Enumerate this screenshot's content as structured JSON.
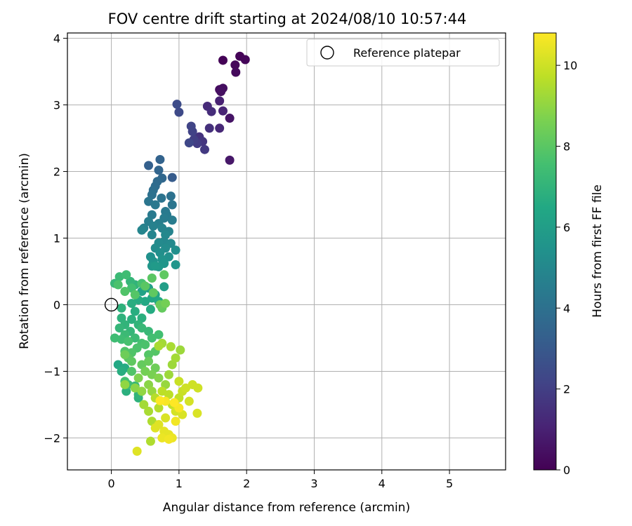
{
  "chart_data": {
    "type": "scatter",
    "title": "FOV centre drift starting at 2024/08/10 10:57:44",
    "xlabel": "Angular distance from reference (arcmin)",
    "ylabel": "Rotation from reference (arcmin)",
    "xlim": [
      -0.65,
      5.83
    ],
    "ylim": [
      -2.48,
      4.08
    ],
    "xticks": [
      0,
      1,
      2,
      3,
      4,
      5
    ],
    "yticks": [
      -2,
      -1,
      0,
      1,
      2,
      3,
      4
    ],
    "grid": true,
    "legend": {
      "placement": "top-right",
      "entries": [
        "Reference platepar"
      ]
    },
    "reference_point": {
      "x": 0,
      "y": 0,
      "label": "Reference platepar"
    },
    "colorbar": {
      "label": "Hours from first FF file",
      "colormap": "viridis",
      "range": [
        0,
        10.8
      ],
      "ticks": [
        0,
        2,
        4,
        6,
        8,
        10
      ]
    },
    "series": [
      {
        "points": [
          {
            "x": 1.65,
            "y": 3.67,
            "t": 0.05
          },
          {
            "x": 1.9,
            "y": 3.73,
            "t": 0.1
          },
          {
            "x": 1.98,
            "y": 3.68,
            "t": 0.15
          },
          {
            "x": 1.83,
            "y": 3.6,
            "t": 0.2
          },
          {
            "x": 1.84,
            "y": 3.49,
            "t": 0.25
          },
          {
            "x": 1.6,
            "y": 3.23,
            "t": 0.35
          },
          {
            "x": 1.65,
            "y": 3.25,
            "t": 0.4
          },
          {
            "x": 1.62,
            "y": 3.2,
            "t": 0.45
          },
          {
            "x": 1.75,
            "y": 2.8,
            "t": 0.6
          },
          {
            "x": 1.75,
            "y": 2.17,
            "t": 0.7
          },
          {
            "x": 1.6,
            "y": 3.06,
            "t": 1.0
          },
          {
            "x": 1.65,
            "y": 2.91,
            "t": 1.1
          },
          {
            "x": 1.6,
            "y": 2.65,
            "t": 1.2
          },
          {
            "x": 1.42,
            "y": 2.98,
            "t": 1.3
          },
          {
            "x": 1.48,
            "y": 2.9,
            "t": 1.4
          },
          {
            "x": 1.45,
            "y": 2.65,
            "t": 1.5
          },
          {
            "x": 1.3,
            "y": 2.52,
            "t": 1.6
          },
          {
            "x": 1.35,
            "y": 2.45,
            "t": 1.7
          },
          {
            "x": 1.38,
            "y": 2.33,
            "t": 1.8
          },
          {
            "x": 1.27,
            "y": 2.42,
            "t": 1.9
          },
          {
            "x": 1.22,
            "y": 2.48,
            "t": 2.0
          },
          {
            "x": 1.2,
            "y": 2.6,
            "t": 2.1
          },
          {
            "x": 1.18,
            "y": 2.68,
            "t": 2.2
          },
          {
            "x": 1.15,
            "y": 2.43,
            "t": 2.3
          },
          {
            "x": 1.0,
            "y": 2.89,
            "t": 2.4
          },
          {
            "x": 0.97,
            "y": 3.01,
            "t": 2.5
          },
          {
            "x": 0.9,
            "y": 1.91,
            "t": 3.1
          },
          {
            "x": 0.55,
            "y": 2.09,
            "t": 3.3
          },
          {
            "x": 0.72,
            "y": 2.18,
            "t": 3.4
          },
          {
            "x": 0.7,
            "y": 2.02,
            "t": 3.5
          },
          {
            "x": 0.75,
            "y": 1.9,
            "t": 3.6
          },
          {
            "x": 0.68,
            "y": 1.85,
            "t": 3.7
          },
          {
            "x": 0.65,
            "y": 1.78,
            "t": 3.8
          },
          {
            "x": 0.62,
            "y": 1.72,
            "t": 3.9
          },
          {
            "x": 0.6,
            "y": 1.65,
            "t": 4.0
          },
          {
            "x": 0.88,
            "y": 1.63,
            "t": 4.0
          },
          {
            "x": 0.74,
            "y": 1.6,
            "t": 4.1
          },
          {
            "x": 0.55,
            "y": 1.55,
            "t": 4.2
          },
          {
            "x": 0.9,
            "y": 1.5,
            "t": 4.2
          },
          {
            "x": 0.65,
            "y": 1.5,
            "t": 4.3
          },
          {
            "x": 0.8,
            "y": 1.4,
            "t": 4.3
          },
          {
            "x": 0.6,
            "y": 1.35,
            "t": 4.4
          },
          {
            "x": 0.82,
            "y": 1.35,
            "t": 4.4
          },
          {
            "x": 0.78,
            "y": 1.3,
            "t": 4.5
          },
          {
            "x": 0.9,
            "y": 1.27,
            "t": 4.5
          },
          {
            "x": 0.55,
            "y": 1.25,
            "t": 4.6
          },
          {
            "x": 0.7,
            "y": 1.22,
            "t": 4.6
          },
          {
            "x": 0.62,
            "y": 1.18,
            "t": 4.7
          },
          {
            "x": 0.48,
            "y": 1.15,
            "t": 4.7
          },
          {
            "x": 0.75,
            "y": 1.15,
            "t": 4.8
          },
          {
            "x": 0.85,
            "y": 1.1,
            "t": 4.8
          },
          {
            "x": 0.45,
            "y": 1.12,
            "t": 4.9
          },
          {
            "x": 0.6,
            "y": 1.05,
            "t": 4.9
          },
          {
            "x": 0.8,
            "y": 1.05,
            "t": 5.0
          },
          {
            "x": 0.78,
            "y": 0.95,
            "t": 5.0
          },
          {
            "x": 0.7,
            "y": 0.93,
            "t": 5.1
          },
          {
            "x": 0.88,
            "y": 0.92,
            "t": 5.1
          },
          {
            "x": 0.65,
            "y": 0.85,
            "t": 5.2
          },
          {
            "x": 0.8,
            "y": 0.85,
            "t": 5.2
          },
          {
            "x": 0.95,
            "y": 0.82,
            "t": 5.3
          },
          {
            "x": 0.72,
            "y": 0.78,
            "t": 5.3
          },
          {
            "x": 0.58,
            "y": 0.72,
            "t": 5.4
          },
          {
            "x": 0.85,
            "y": 0.72,
            "t": 5.4
          },
          {
            "x": 0.75,
            "y": 0.68,
            "t": 5.5
          },
          {
            "x": 0.62,
            "y": 0.65,
            "t": 5.5
          },
          {
            "x": 0.78,
            "y": 0.62,
            "t": 5.6
          },
          {
            "x": 0.95,
            "y": 0.6,
            "t": 5.6
          },
          {
            "x": 0.6,
            "y": 0.58,
            "t": 5.7
          },
          {
            "x": 0.7,
            "y": 0.57,
            "t": 5.7
          },
          {
            "x": 0.65,
            "y": 0.58,
            "t": 5.8
          },
          {
            "x": 0.78,
            "y": 0.27,
            "t": 6.0
          },
          {
            "x": 0.55,
            "y": 0.25,
            "t": 6.1
          },
          {
            "x": 0.45,
            "y": 0.2,
            "t": 6.2
          },
          {
            "x": 0.65,
            "y": 0.15,
            "t": 6.3
          },
          {
            "x": 0.6,
            "y": 0.1,
            "t": 6.4
          },
          {
            "x": 0.7,
            "y": 0.05,
            "t": 6.5
          },
          {
            "x": 0.5,
            "y": 0.05,
            "t": 6.5
          },
          {
            "x": 0.58,
            "y": -0.07,
            "t": 6.6
          },
          {
            "x": 0.4,
            "y": 0.07,
            "t": 6.6
          },
          {
            "x": 0.3,
            "y": 0.02,
            "t": 6.7
          },
          {
            "x": 0.35,
            "y": -0.1,
            "t": 6.7
          },
          {
            "x": 0.45,
            "y": -0.2,
            "t": 6.8
          },
          {
            "x": 0.3,
            "y": -0.22,
            "t": 6.8
          },
          {
            "x": 0.15,
            "y": -0.05,
            "t": 6.9
          },
          {
            "x": 0.15,
            "y": -0.2,
            "t": 6.9
          },
          {
            "x": 0.2,
            "y": -0.3,
            "t": 7.0
          },
          {
            "x": 0.4,
            "y": -0.3,
            "t": 7.0
          },
          {
            "x": 0.12,
            "y": -0.35,
            "t": 7.1
          },
          {
            "x": 0.28,
            "y": -0.4,
            "t": 7.1
          },
          {
            "x": 0.45,
            "y": -0.35,
            "t": 7.2
          },
          {
            "x": 0.55,
            "y": -0.4,
            "t": 7.2
          },
          {
            "x": 0.2,
            "y": -0.45,
            "t": 7.3
          },
          {
            "x": 0.35,
            "y": -0.5,
            "t": 7.3
          },
          {
            "x": 0.05,
            "y": -0.5,
            "t": 7.4
          },
          {
            "x": 0.15,
            "y": -0.52,
            "t": 7.4
          },
          {
            "x": 0.6,
            "y": -0.5,
            "t": 7.5
          },
          {
            "x": 0.7,
            "y": -0.45,
            "t": 7.5
          },
          {
            "x": 0.25,
            "y": -0.55,
            "t": 7.6
          },
          {
            "x": 0.45,
            "y": -0.58,
            "t": 7.6
          },
          {
            "x": 0.38,
            "y": -0.65,
            "t": 7.7
          },
          {
            "x": 0.5,
            "y": -0.6,
            "t": 7.7
          },
          {
            "x": 0.2,
            "y": -0.7,
            "t": 7.8
          },
          {
            "x": 0.3,
            "y": -0.72,
            "t": 7.8
          },
          {
            "x": 0.55,
            "y": -0.75,
            "t": 7.9
          },
          {
            "x": 0.65,
            "y": -0.7,
            "t": 7.9
          },
          {
            "x": 0.1,
            "y": -0.9,
            "t": 6.5
          },
          {
            "x": 0.2,
            "y": -0.95,
            "t": 6.6
          },
          {
            "x": 0.15,
            "y": -1.0,
            "t": 6.7
          },
          {
            "x": 0.22,
            "y": -1.3,
            "t": 6.8
          },
          {
            "x": 0.4,
            "y": -1.4,
            "t": 6.9
          },
          {
            "x": 0.4,
            "y": -1.35,
            "t": 7.0
          },
          {
            "x": 0.35,
            "y": -1.22,
            "t": 7.2
          },
          {
            "x": 0.25,
            "y": -1.2,
            "t": 7.4
          },
          {
            "x": 0.2,
            "y": -1.15,
            "t": 7.6
          },
          {
            "x": 0.3,
            "y": -1.0,
            "t": 7.8
          },
          {
            "x": 0.35,
            "y": 0.3,
            "t": 7.0
          },
          {
            "x": 0.28,
            "y": 0.35,
            "t": 7.1
          },
          {
            "x": 0.05,
            "y": 0.32,
            "t": 7.2
          },
          {
            "x": 0.12,
            "y": 0.42,
            "t": 7.3
          },
          {
            "x": 0.22,
            "y": 0.45,
            "t": 7.4
          },
          {
            "x": 0.3,
            "y": 0.25,
            "t": 7.5
          },
          {
            "x": 0.45,
            "y": 0.32,
            "t": 7.6
          },
          {
            "x": 0.1,
            "y": 0.3,
            "t": 7.7
          },
          {
            "x": 0.2,
            "y": 0.2,
            "t": 7.8
          },
          {
            "x": 0.35,
            "y": 0.15,
            "t": 7.9
          },
          {
            "x": 0.5,
            "y": 0.28,
            "t": 8.0
          },
          {
            "x": 0.6,
            "y": 0.4,
            "t": 8.0
          },
          {
            "x": 0.78,
            "y": 0.45,
            "t": 8.1
          },
          {
            "x": 0.62,
            "y": 0.18,
            "t": 8.1
          },
          {
            "x": 0.75,
            "y": -0.05,
            "t": 8.2
          },
          {
            "x": 0.72,
            "y": 0.0,
            "t": 8.3
          },
          {
            "x": 0.8,
            "y": 0.02,
            "t": 8.5
          },
          {
            "x": 0.25,
            "y": -0.8,
            "t": 8.0
          },
          {
            "x": 0.3,
            "y": -0.85,
            "t": 8.1
          },
          {
            "x": 0.45,
            "y": -0.9,
            "t": 8.2
          },
          {
            "x": 0.55,
            "y": -0.85,
            "t": 8.3
          },
          {
            "x": 0.65,
            "y": -0.95,
            "t": 8.4
          },
          {
            "x": 0.2,
            "y": -0.75,
            "t": 8.4
          },
          {
            "x": 0.5,
            "y": -1.0,
            "t": 8.5
          },
          {
            "x": 0.6,
            "y": -1.05,
            "t": 8.6
          },
          {
            "x": 0.4,
            "y": -1.1,
            "t": 8.7
          },
          {
            "x": 0.7,
            "y": -1.1,
            "t": 8.8
          },
          {
            "x": 0.55,
            "y": -1.2,
            "t": 8.9
          },
          {
            "x": 0.35,
            "y": -1.25,
            "t": 8.9
          },
          {
            "x": 0.45,
            "y": -1.3,
            "t": 9.0
          },
          {
            "x": 0.2,
            "y": -1.2,
            "t": 9.0
          },
          {
            "x": 0.6,
            "y": -1.3,
            "t": 9.1
          },
          {
            "x": 0.8,
            "y": -1.2,
            "t": 9.1
          },
          {
            "x": 0.85,
            "y": -1.05,
            "t": 9.2
          },
          {
            "x": 0.9,
            "y": -0.9,
            "t": 9.2
          },
          {
            "x": 0.95,
            "y": -0.8,
            "t": 9.3
          },
          {
            "x": 1.02,
            "y": -0.68,
            "t": 9.2
          },
          {
            "x": 0.75,
            "y": -0.58,
            "t": 9.3
          },
          {
            "x": 0.7,
            "y": -0.62,
            "t": 9.4
          },
          {
            "x": 0.88,
            "y": -0.63,
            "t": 9.4
          },
          {
            "x": 0.48,
            "y": -1.5,
            "t": 9.3
          },
          {
            "x": 0.55,
            "y": -1.6,
            "t": 9.4
          },
          {
            "x": 0.6,
            "y": -1.75,
            "t": 9.5
          },
          {
            "x": 0.58,
            "y": -2.05,
            "t": 9.5
          },
          {
            "x": 0.65,
            "y": -1.4,
            "t": 9.6
          },
          {
            "x": 0.7,
            "y": -1.55,
            "t": 9.6
          },
          {
            "x": 0.75,
            "y": -1.3,
            "t": 9.7
          },
          {
            "x": 0.85,
            "y": -1.35,
            "t": 9.7
          },
          {
            "x": 0.9,
            "y": -1.5,
            "t": 9.8
          },
          {
            "x": 1.0,
            "y": -1.4,
            "t": 9.8
          },
          {
            "x": 1.05,
            "y": -1.3,
            "t": 9.9
          },
          {
            "x": 1.0,
            "y": -1.15,
            "t": 9.9
          },
          {
            "x": 1.1,
            "y": -1.25,
            "t": 10.0
          },
          {
            "x": 1.2,
            "y": -1.2,
            "t": 10.0
          },
          {
            "x": 1.15,
            "y": -1.45,
            "t": 10.1
          },
          {
            "x": 0.95,
            "y": -1.6,
            "t": 10.1
          },
          {
            "x": 1.05,
            "y": -1.65,
            "t": 10.2
          },
          {
            "x": 0.8,
            "y": -1.7,
            "t": 10.2
          },
          {
            "x": 0.65,
            "y": -1.85,
            "t": 10.3
          },
          {
            "x": 0.7,
            "y": -1.8,
            "t": 10.3
          },
          {
            "x": 0.78,
            "y": -1.9,
            "t": 10.4
          },
          {
            "x": 0.85,
            "y": -1.95,
            "t": 10.4
          },
          {
            "x": 0.9,
            "y": -2.0,
            "t": 10.5
          },
          {
            "x": 0.75,
            "y": -2.0,
            "t": 10.5
          },
          {
            "x": 0.85,
            "y": -2.02,
            "t": 10.6
          },
          {
            "x": 0.95,
            "y": -1.75,
            "t": 10.6
          },
          {
            "x": 1.0,
            "y": -1.55,
            "t": 10.7
          },
          {
            "x": 0.8,
            "y": -1.45,
            "t": 10.7
          },
          {
            "x": 0.93,
            "y": -1.47,
            "t": 10.8
          },
          {
            "x": 0.72,
            "y": -1.44,
            "t": 10.8
          },
          {
            "x": 1.28,
            "y": -1.25,
            "t": 10.0
          },
          {
            "x": 1.27,
            "y": -1.63,
            "t": 10.2
          },
          {
            "x": 0.38,
            "y": -2.2,
            "t": 10.3
          }
        ]
      }
    ]
  }
}
